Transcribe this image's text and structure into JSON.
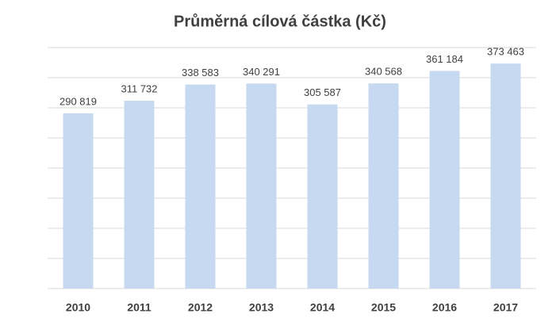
{
  "chart_data": {
    "type": "bar",
    "title": "Průměrná cílová částka (Kč)",
    "categories": [
      "2010",
      "2011",
      "2012",
      "2013",
      "2014",
      "2015",
      "2016",
      "2017"
    ],
    "values": [
      290819,
      311732,
      338583,
      340291,
      305587,
      340568,
      361184,
      373463
    ],
    "value_labels": [
      "290 819",
      "311 732",
      "338 583",
      "340 291",
      "305 587",
      "340 568",
      "361 184",
      "373 463"
    ],
    "color": "#c6d9f1",
    "ylim": [
      0,
      400000
    ],
    "yticks": [
      0,
      50000,
      100000,
      150000,
      200000,
      250000,
      300000,
      350000,
      400000
    ],
    "grid": true
  }
}
